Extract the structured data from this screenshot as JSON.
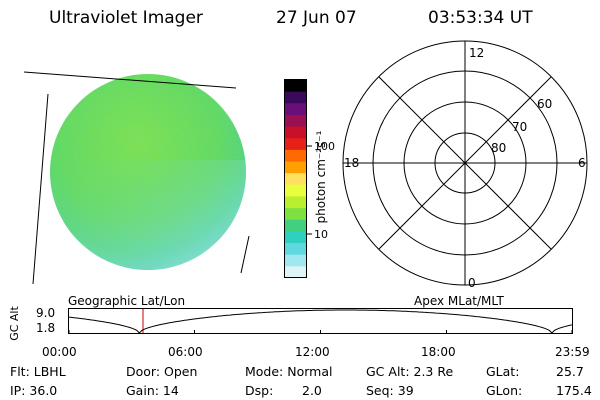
{
  "header": {
    "instrument": "Ultraviolet Imager",
    "date": "27 Jun 07",
    "time": "03:53:34 UT"
  },
  "colorbar": {
    "unit_label": "photon cm⁻²s⁻¹",
    "ticks": [
      "100",
      "10"
    ],
    "scale": "log",
    "colors": [
      "#000000",
      "#3a0a5a",
      "#6a0f7a",
      "#9a1050",
      "#c8102a",
      "#e8201a",
      "#ff6a00",
      "#ffa000",
      "#ffe060",
      "#e8ff40",
      "#b8f030",
      "#80e040",
      "#40d080",
      "#30d0c0",
      "#60d8e0",
      "#a0e8f0",
      "#e0f4f8"
    ]
  },
  "polar_plot": {
    "mlt_labels": {
      "top": "12",
      "left": "18",
      "right": "6",
      "bottom": "0"
    },
    "lat_labels": [
      "60",
      "70",
      "80"
    ]
  },
  "altitude_plot": {
    "left_label": "Geographic Lat/Lon",
    "right_label": "Apex MLat/MLT",
    "y_axis_title": "GC Alt",
    "y_ticks": [
      "9.0",
      "1.8"
    ],
    "x_ticks": [
      "00:00",
      "06:00",
      "12:00",
      "18:00",
      "23:59"
    ]
  },
  "info": {
    "flt": "Flt: LBHL",
    "ip": "IP: 36.0",
    "door": "Door: Open",
    "gain": "Gain: 14",
    "mode": "Mode: Normal",
    "dsp": "Dsp:",
    "dsp_value": "2.0",
    "gc_alt": "GC Alt: 2.3 Re",
    "seq": "Seq: 39",
    "glat": "GLat:",
    "glat_value": "25.7",
    "glon": "GLon:",
    "glon_value": "175.4"
  },
  "colors": {
    "grid": "#000000",
    "time_marker": "#cc0000",
    "earth_green": "#6fdc4a",
    "earth_cyan": "#6fd8d0"
  }
}
